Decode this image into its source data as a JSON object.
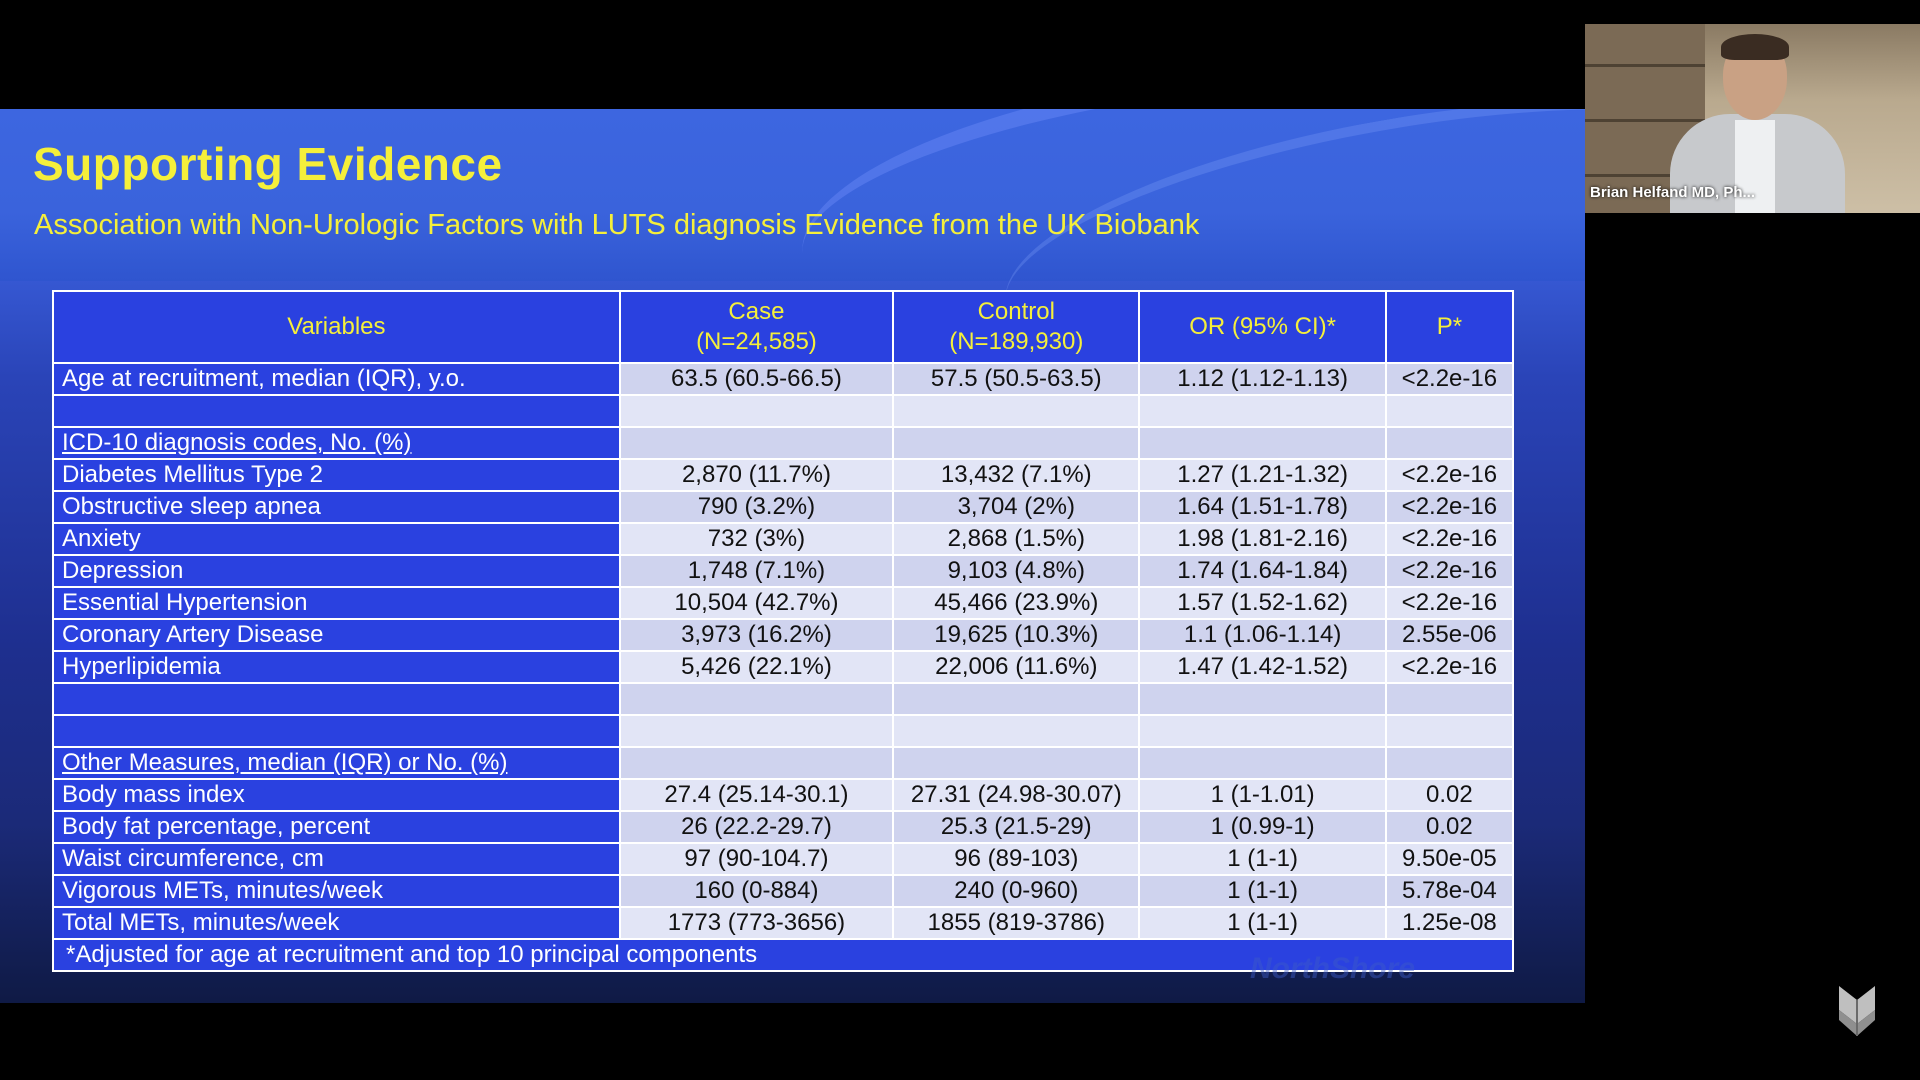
{
  "slide": {
    "title": "Supporting Evidence",
    "subtitle": "Association with Non-Urologic Factors with LUTS diagnosis  Evidence from the UK Biobank",
    "watermark": "NorthShore"
  },
  "table": {
    "headers": {
      "variables": "Variables",
      "case_line1": "Case",
      "case_line2": "(N=24,585)",
      "control_line1": "Control",
      "control_line2": "(N=189,930)",
      "or": "OR (95% CI)*",
      "p": "P*"
    },
    "rows": [
      {
        "label": "Age at recruitment, median (IQR), y.o.",
        "case": "63.5 (60.5-66.5)",
        "control": "57.5 (50.5-63.5)",
        "or": "1.12 (1.12-1.13)",
        "p": "<2.2e-16"
      },
      {
        "label": "",
        "case": "",
        "control": "",
        "or": "",
        "p": ""
      },
      {
        "label": "ICD-10 diagnosis codes, No. (%)",
        "case": "",
        "control": "",
        "or": "",
        "p": ""
      },
      {
        "label": "Diabetes Mellitus Type 2",
        "case": "2,870 (11.7%)",
        "control": "13,432 (7.1%)",
        "or": "1.27 (1.21-1.32)",
        "p": "<2.2e-16"
      },
      {
        "label": "Obstructive sleep apnea",
        "case": "790 (3.2%)",
        "control": "3,704 (2%)",
        "or": "1.64 (1.51-1.78)",
        "p": "<2.2e-16"
      },
      {
        "label": "Anxiety",
        "case": "732 (3%)",
        "control": "2,868 (1.5%)",
        "or": "1.98 (1.81-2.16)",
        "p": "<2.2e-16"
      },
      {
        "label": "Depression",
        "case": "1,748 (7.1%)",
        "control": "9,103 (4.8%)",
        "or": "1.74 (1.64-1.84)",
        "p": "<2.2e-16"
      },
      {
        "label": "Essential Hypertension",
        "case": "10,504 (42.7%)",
        "control": "45,466 (23.9%)",
        "or": "1.57 (1.52-1.62)",
        "p": "<2.2e-16"
      },
      {
        "label": "Coronary Artery Disease",
        "case": "3,973 (16.2%)",
        "control": "19,625 (10.3%)",
        "or": "1.1 (1.06-1.14)",
        "p": "2.55e-06"
      },
      {
        "label": "Hyperlipidemia",
        "case": "5,426 (22.1%)",
        "control": "22,006 (11.6%)",
        "or": "1.47 (1.42-1.52)",
        "p": "<2.2e-16"
      },
      {
        "label": "",
        "case": "",
        "control": "",
        "or": "",
        "p": ""
      },
      {
        "label": "",
        "case": "",
        "control": "",
        "or": "",
        "p": ""
      },
      {
        "label": "Other Measures, median (IQR) or No. (%)",
        "case": "",
        "control": "",
        "or": "",
        "p": ""
      },
      {
        "label": "Body mass index",
        "case": "27.4 (25.14-30.1)",
        "control": "27.31 (24.98-30.07)",
        "or": "1 (1-1.01)",
        "p": "0.02"
      },
      {
        "label": "Body fat percentage, percent",
        "case": "26 (22.2-29.7)",
        "control": "25.3 (21.5-29)",
        "or": "1 (0.99-1)",
        "p": "0.02"
      },
      {
        "label": "Waist circumference, cm",
        "case": "97 (90-104.7)",
        "control": "96 (89-103)",
        "or": "1 (1-1)",
        "p": "9.50e-05"
      },
      {
        "label": "Vigorous METs, minutes/week",
        "case": "160 (0-884)",
        "control": "240 (0-960)",
        "or": "1 (1-1)",
        "p": "5.78e-04"
      },
      {
        "label": "Total METs, minutes/week",
        "case": "1773 (773-3656)",
        "control": "1855 (819-3786)",
        "or": "1 (1-1)",
        "p": "1.25e-08"
      }
    ],
    "footnote": "*Adjusted for age at recruitment and top 10 principal components"
  },
  "participant": {
    "name": "Brian Helfand MD, Ph..."
  },
  "colors": {
    "title_yellow": "#f5ef3a",
    "header_cell_blue": "#2a41e0",
    "value_cell": "#cfd3ee"
  }
}
